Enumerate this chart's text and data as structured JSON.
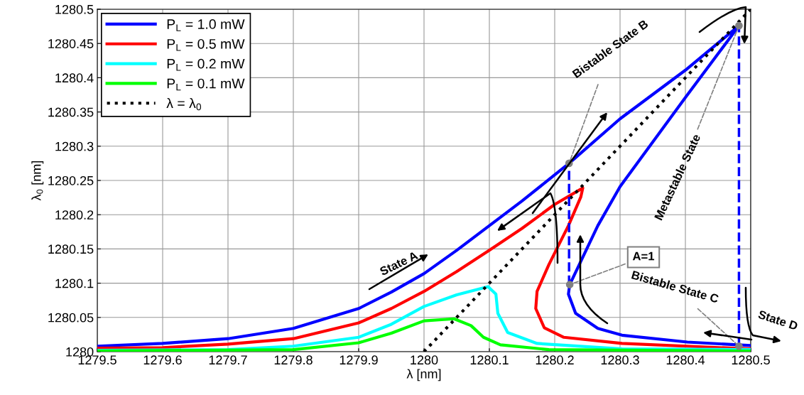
{
  "chart_data": {
    "type": "line",
    "xlabel": "λ [nm]",
    "ylabel": "λ$_{0}$ [nm]",
    "xlim": [
      1279.5,
      1280.5
    ],
    "ylim": [
      1280,
      1280.5
    ],
    "xticks": [
      1279.5,
      1279.6,
      1279.7,
      1279.8,
      1279.9,
      1280,
      1280.1,
      1280.2,
      1280.3,
      1280.4,
      1280.5
    ],
    "yticks": [
      1280,
      1280.05,
      1280.1,
      1280.15,
      1280.2,
      1280.25,
      1280.3,
      1280.35,
      1280.4,
      1280.45,
      1280.5
    ],
    "grid": true,
    "legend": "top left",
    "line_style": "solid",
    "series": [
      {
        "name": "P$_{L}$ = 1.0 mW",
        "color": "#0000ff",
        "x": [
          1279.5,
          1279.6,
          1279.7,
          1279.8,
          1279.9,
          1279.95,
          1280,
          1280.05,
          1280.1,
          1280.15,
          1280.222,
          1280.3,
          1280.4,
          1280.482,
          1280.4,
          1280.3,
          1280.266,
          1280.223,
          1280.221,
          1280.232,
          1280.266,
          1280.303,
          1280.403,
          1280.5
        ],
        "values": [
          1280.008,
          1280.012,
          1280.019,
          1280.034,
          1280.063,
          1280.087,
          1280.114,
          1280.148,
          1280.184,
          1280.22,
          1280.275,
          1280.34,
          1280.411,
          1280.476,
          1280.371,
          1280.241,
          1280.184,
          1280.098,
          1280.084,
          1280.056,
          1280.034,
          1280.024,
          1280.014,
          1280.009
        ]
      },
      {
        "name": "P$_{L}$ = 0.5 mW",
        "color": "#ff0000",
        "x": [
          1279.5,
          1279.6,
          1279.7,
          1279.8,
          1279.9,
          1279.95,
          1280,
          1280.05,
          1280.1,
          1280.15,
          1280.2,
          1280.243,
          1280.24,
          1280.221,
          1280.191,
          1280.173,
          1280.171,
          1280.184,
          1280.214,
          1280.303,
          1280.5
        ],
        "values": [
          1280.005,
          1280.006,
          1280.011,
          1280.019,
          1280.042,
          1280.063,
          1280.088,
          1280.117,
          1280.148,
          1280.18,
          1280.215,
          1280.239,
          1280.226,
          1280.184,
          1280.127,
          1280.088,
          1280.063,
          1280.035,
          1280.021,
          1280.012,
          1280.004
        ]
      },
      {
        "name": "P$_{L}$ = 0.2 mW",
        "color": "#00ffff",
        "x": [
          1279.5,
          1279.7,
          1279.8,
          1279.9,
          1279.95,
          1280,
          1280.05,
          1280.098,
          1280.11,
          1280.113,
          1280.128,
          1280.173,
          1280.303,
          1280.5
        ],
        "values": [
          1280.002,
          1280.003,
          1280.008,
          1280.021,
          1280.04,
          1280.066,
          1280.083,
          1280.095,
          1280.084,
          1280.056,
          1280.028,
          1280.012,
          1280.004,
          1280.003
        ]
      },
      {
        "name": "P$_{L}$ = 0.1 mW",
        "color": "#00ff00",
        "x": [
          1279.5,
          1279.8,
          1279.9,
          1279.95,
          1280,
          1280.046,
          1280.072,
          1280.091,
          1280.117,
          1280.191,
          1280.5
        ],
        "values": [
          1280.001,
          1280.003,
          1280.013,
          1280.027,
          1280.045,
          1280.048,
          1280.038,
          1280.021,
          1280.01,
          1280.003,
          1280.001
        ]
      },
      {
        "name": "λ = λ$_{0}$",
        "color": "#000000",
        "line_style": "dotted",
        "x": [
          1280,
          1280.5
        ],
        "values": [
          1280,
          1280.5
        ]
      },
      {
        "color": "#0000ff",
        "line_style": "dashed",
        "x": [
          1280.222,
          1280.222
        ],
        "values": [
          1280.098,
          1280.275
        ]
      },
      {
        "color": "#0000ff",
        "line_style": "dashed",
        "x": [
          1280.482,
          1280.482
        ],
        "values": [
          1280.008,
          1280.476
        ]
      },
      {
        "type": "scatter",
        "color": "#808080",
        "marker": "circle",
        "x": [
          1280.222,
          1280.223,
          1280.482,
          1280.482
        ],
        "values": [
          1280.275,
          1280.098,
          1280.476,
          1280.008
        ]
      }
    ],
    "annotations": [
      "State A",
      {
        "text": "Bistable State B",
        "x": 1280.222,
        "y": 1280.275
      },
      {
        "text": "Metastable State",
        "x": 1280.482,
        "y": 1280.476
      },
      {
        "text": "A=1",
        "x": 1280.223,
        "y": 1280.098
      },
      {
        "text": "Bistable State C",
        "x": 1280.482,
        "y": 1280.008
      },
      "State D"
    ]
  }
}
